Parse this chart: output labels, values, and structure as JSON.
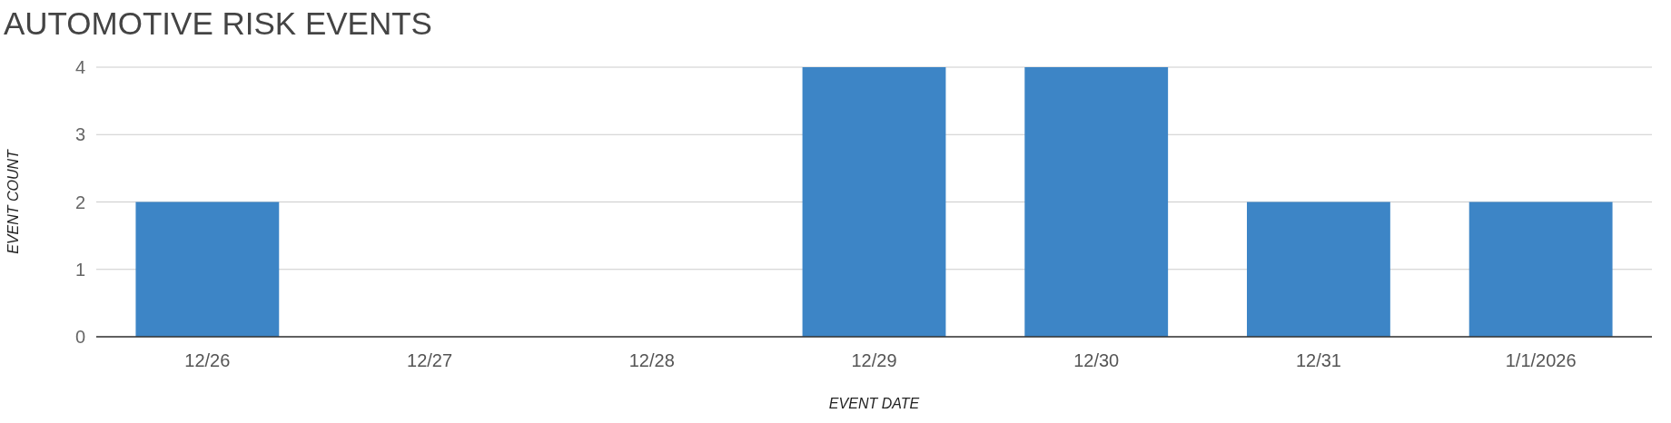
{
  "chart_data": {
    "type": "bar",
    "title": "AUTOMOTIVE RISK EVENTS",
    "xlabel": "EVENT DATE",
    "ylabel": "EVENT COUNT",
    "categories": [
      "12/26",
      "12/27",
      "12/28",
      "12/29",
      "12/30",
      "12/31",
      "1/1/2026"
    ],
    "values": [
      2,
      0,
      0,
      4,
      4,
      2,
      2
    ],
    "color": "#3d85c6",
    "ylim": [
      0,
      4
    ],
    "yticks": [
      0,
      1,
      2,
      3,
      4
    ],
    "grid": "y"
  }
}
